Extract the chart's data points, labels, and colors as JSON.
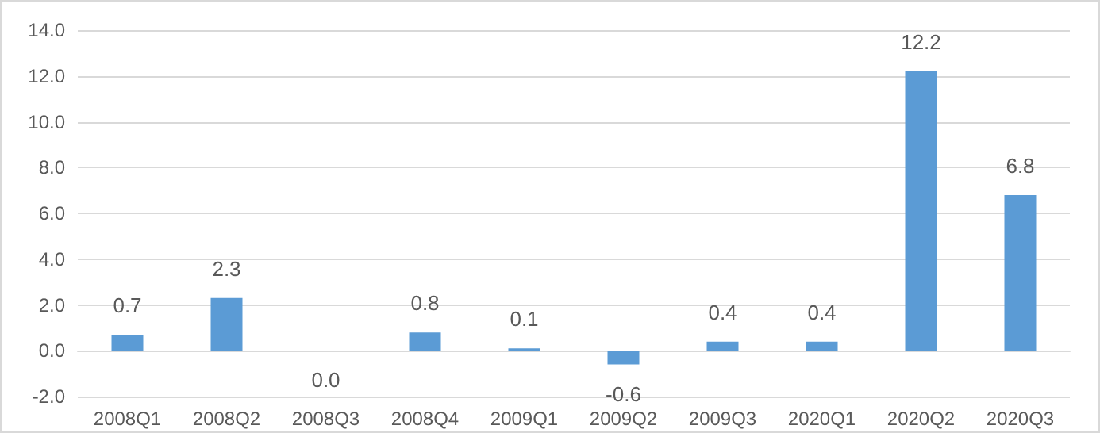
{
  "chart_data": {
    "type": "bar",
    "categories": [
      "2008Q1",
      "2008Q2",
      "2008Q3",
      "2008Q4",
      "2009Q1",
      "2009Q2",
      "2009Q3",
      "2020Q1",
      "2020Q2",
      "2020Q3"
    ],
    "values": [
      0.7,
      2.3,
      0.0,
      0.8,
      0.1,
      -0.6,
      0.4,
      0.4,
      12.2,
      6.8
    ],
    "value_labels": [
      "0.7",
      "2.3",
      "0.0",
      "0.8",
      "0.1",
      "-0.6",
      "0.4",
      "0.4",
      "12.2",
      "6.8"
    ],
    "color": "#5b9bd5",
    "ylim": [
      -2,
      14
    ],
    "yticks": [
      {
        "value": -2,
        "label": "-2.0"
      },
      {
        "value": 0,
        "label": "0.0"
      },
      {
        "value": 2,
        "label": "2.0"
      },
      {
        "value": 4,
        "label": "4.0"
      },
      {
        "value": 6,
        "label": "6.0"
      },
      {
        "value": 8,
        "label": "8.0"
      },
      {
        "value": 10,
        "label": "10.0"
      },
      {
        "value": 12,
        "label": "12.0"
      },
      {
        "value": 14,
        "label": "14.0"
      }
    ],
    "grid": "y"
  }
}
